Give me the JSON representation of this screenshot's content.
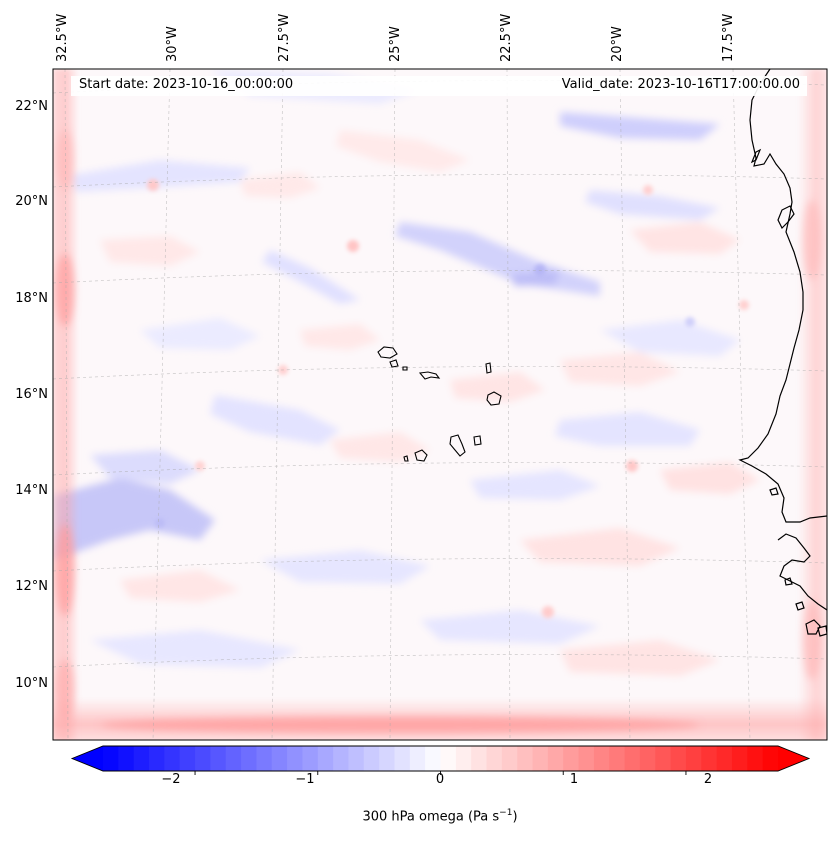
{
  "map": {
    "start_date_label": "Start date: 2023-10-16_00:00:00",
    "valid_date_label": "Valid_date: 2023-10-16T17:00:00.00",
    "lon_labels": [
      "32.5°W",
      "30°W",
      "27.5°W",
      "25°W",
      "22.5°W",
      "20°W",
      "17.5°W"
    ],
    "lat_labels": [
      "22°N",
      "20°N",
      "18°N",
      "16°N",
      "14°N",
      "12°N",
      "10°N"
    ],
    "region": "Cape Verde Islands and West African coast",
    "field": "300 hPa vertical velocity (omega)"
  },
  "colorbar": {
    "label_prefix": "300 hPa omega (Pa s",
    "label_exponent": "−1",
    "label_suffix": ")",
    "ticks": [
      "−2",
      "−1",
      "0",
      "1",
      "2"
    ],
    "tick_values": [
      -2,
      -1,
      0,
      1,
      2
    ],
    "min": -2.75,
    "max": 2.75,
    "cmap": "bwr",
    "low_color": "#0000ff",
    "mid_color": "#ffffff",
    "high_color": "#ff0000",
    "n_levels": 44
  }
}
